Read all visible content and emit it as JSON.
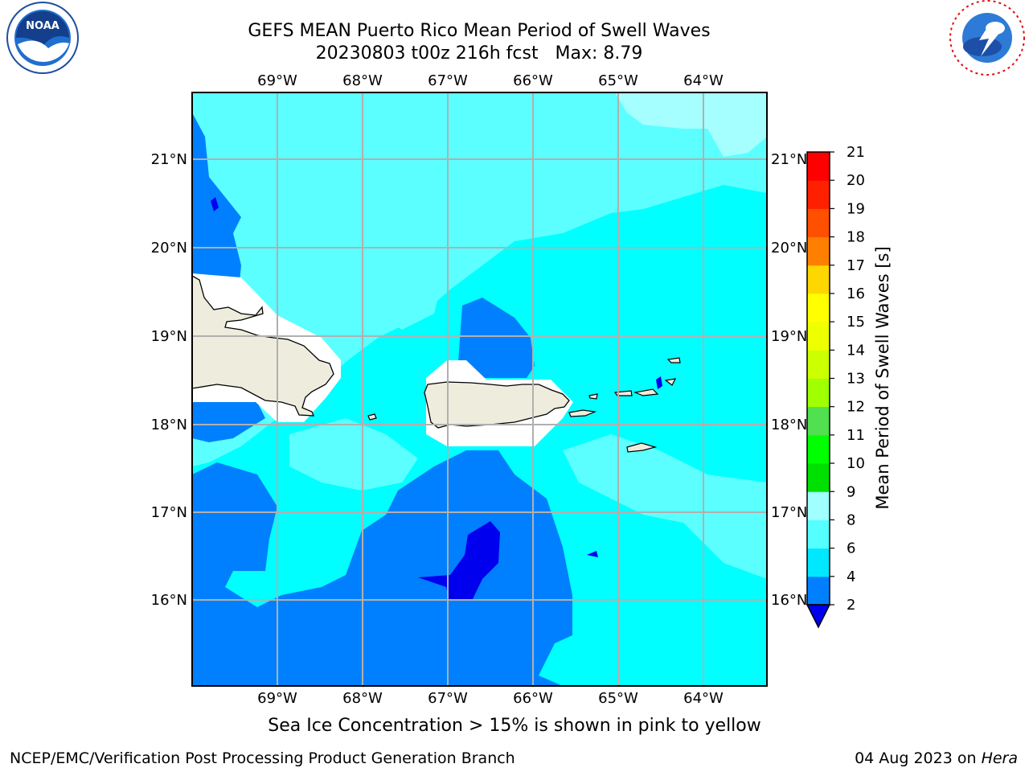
{
  "header": {
    "title_line1": "GEFS MEAN Puerto Rico Mean Period of Swell Waves",
    "title_line2": "20230803 t00z 216h fcst   Max: 8.79"
  },
  "logos": {
    "left": {
      "name": "NOAA",
      "ring_text": "NATIONAL OCEANIC AND ATMOSPHERIC ADMINISTRATION · U.S. DEPARTMENT OF COMMERCE"
    },
    "right": {
      "name": "NATIONAL WEATHER SERVICE"
    }
  },
  "map": {
    "lon_labels": [
      "69°W",
      "68°W",
      "67°W",
      "66°W",
      "65°W",
      "64°W"
    ],
    "lat_labels": [
      "21°N",
      "20°N",
      "19°N",
      "18°N",
      "17°N",
      "16°N"
    ],
    "land_color": "#eeecdd",
    "grid_color": "#b0b0b0"
  },
  "colorbar": {
    "label": "Mean Period of Swell Waves [s]",
    "ticks": [
      "2",
      "4",
      "6",
      "8",
      "9",
      "10",
      "11",
      "12",
      "13",
      "14",
      "15",
      "16",
      "17",
      "18",
      "19",
      "20",
      "21"
    ],
    "extend_color": "#0000ee",
    "colors": [
      "#0080ff",
      "#00e8ff",
      "#55ffff",
      "#a0ffff",
      "#55ff80",
      "#00e000",
      "#00ff00",
      "#50e050",
      "#a0ff00",
      "#ccff00",
      "#eeff00",
      "#ffff00",
      "#ffd700",
      "#ffae00",
      "#ff8000",
      "#ff5000",
      "#ff2000",
      "#ff0000"
    ]
  },
  "footer": {
    "note": "Sea Ice Concentration > 15% is shown in pink to yellow",
    "credit": "NCEP/EMC/Verification Post Processing Product Generation Branch",
    "date_prefix": "04 Aug 2023 on ",
    "date_machine": "Hera"
  }
}
